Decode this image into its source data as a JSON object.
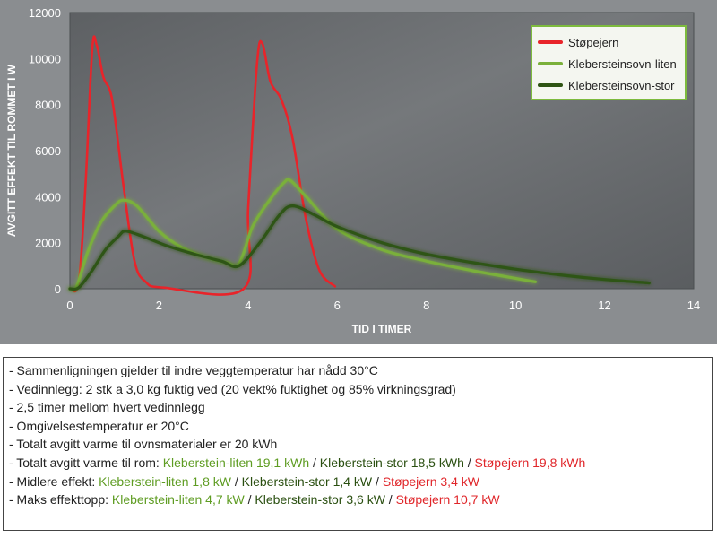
{
  "chart_data": {
    "type": "line",
    "xlabel": "TID I TIMER",
    "ylabel": "AVGITT EFFEKT TIL ROMMET I W",
    "xlim": [
      0,
      14
    ],
    "ylim": [
      0,
      12000
    ],
    "x_ticks": [
      "0",
      "2",
      "4",
      "6",
      "8",
      "10",
      "12",
      "14"
    ],
    "y_ticks": [
      "0",
      "2000",
      "4000",
      "6000",
      "8000",
      "10000",
      "12000"
    ],
    "legend_position": "top-right",
    "grid": false,
    "series": [
      {
        "name": "Støpejern",
        "color": "#e8242a",
        "points": [
          [
            0,
            0
          ],
          [
            0.2,
            300
          ],
          [
            0.35,
            4500
          ],
          [
            0.5,
            10400
          ],
          [
            0.6,
            10600
          ],
          [
            0.75,
            9200
          ],
          [
            0.95,
            8200
          ],
          [
            1.2,
            4500
          ],
          [
            1.45,
            1200
          ],
          [
            1.7,
            300
          ],
          [
            2.1,
            50
          ],
          [
            3.9,
            0
          ],
          [
            4.0,
            3500
          ],
          [
            4.2,
            9800
          ],
          [
            4.32,
            10650
          ],
          [
            4.5,
            9000
          ],
          [
            4.75,
            8200
          ],
          [
            5.0,
            6500
          ],
          [
            5.3,
            3000
          ],
          [
            5.6,
            800
          ],
          [
            5.95,
            100
          ]
        ]
      },
      {
        "name": "Klebersteinsovn-liten",
        "color": "#7ab03a",
        "points": [
          [
            0,
            0
          ],
          [
            0.15,
            100
          ],
          [
            0.4,
            1600
          ],
          [
            0.7,
            2900
          ],
          [
            1.0,
            3600
          ],
          [
            1.2,
            3850
          ],
          [
            1.5,
            3600
          ],
          [
            2.0,
            2500
          ],
          [
            2.5,
            1800
          ],
          [
            3.0,
            1400
          ],
          [
            3.5,
            1150
          ],
          [
            3.8,
            1100
          ],
          [
            4.1,
            2700
          ],
          [
            4.5,
            3900
          ],
          [
            4.8,
            4600
          ],
          [
            4.95,
            4700
          ],
          [
            5.3,
            4000
          ],
          [
            6.0,
            2600
          ],
          [
            7.0,
            1700
          ],
          [
            8.0,
            1200
          ],
          [
            9.0,
            800
          ],
          [
            10.0,
            450
          ],
          [
            10.45,
            300
          ]
        ]
      },
      {
        "name": "Klebersteinsovn-stor",
        "color": "#2e5414",
        "points": [
          [
            0,
            0
          ],
          [
            0.2,
            50
          ],
          [
            0.5,
            800
          ],
          [
            0.8,
            1700
          ],
          [
            1.1,
            2300
          ],
          [
            1.25,
            2500
          ],
          [
            1.6,
            2300
          ],
          [
            2.2,
            1850
          ],
          [
            2.8,
            1500
          ],
          [
            3.4,
            1200
          ],
          [
            3.8,
            1000
          ],
          [
            4.3,
            2100
          ],
          [
            4.7,
            3200
          ],
          [
            5.0,
            3600
          ],
          [
            5.5,
            3200
          ],
          [
            6.0,
            2700
          ],
          [
            7.0,
            2000
          ],
          [
            8.0,
            1500
          ],
          [
            9.0,
            1150
          ],
          [
            10.0,
            850
          ],
          [
            11.0,
            600
          ],
          [
            12.0,
            400
          ],
          [
            13.0,
            250
          ]
        ]
      }
    ]
  },
  "notes": [
    {
      "segments": [
        {
          "text": "- Sammenligningen gjelder til indre veggtemperatur  har nådd 30°C",
          "tone": "plain"
        }
      ]
    },
    {
      "segments": [
        {
          "text": "- Vedinnlegg:  2 stk a 3,0 kg fuktig ved (20 vekt% fuktighet og 85% virkningsgrad)",
          "tone": "plain"
        }
      ]
    },
    {
      "segments": [
        {
          "text": "- 2,5 timer mellom hvert vedinnlegg",
          "tone": "plain"
        }
      ]
    },
    {
      "segments": [
        {
          "text": "- Omgivelsestemperatur  er 20°C",
          "tone": "plain"
        }
      ]
    },
    {
      "segments": [
        {
          "text": "- Totalt avgitt varme til ovnsmaterialer  er 20 kWh",
          "tone": "plain"
        }
      ]
    },
    {
      "segments": [
        {
          "text": "- Totalt avgitt varme til rom: ",
          "tone": "plain"
        },
        {
          "text": "Kleberstein-liten  19,1 kWh",
          "tone": "green"
        },
        {
          "text": " / ",
          "tone": "plain"
        },
        {
          "text": "Kleberstein-stor  18,5 kWh",
          "tone": "dark"
        },
        {
          "text": " / ",
          "tone": "plain"
        },
        {
          "text": "Støpejern  19,8 kWh",
          "tone": "red"
        }
      ]
    },
    {
      "segments": [
        {
          "text": "- Midlere effekt:  ",
          "tone": "plain"
        },
        {
          "text": "Kleberstein-liten  1,8 kW",
          "tone": "green"
        },
        {
          "text": " / ",
          "tone": "plain"
        },
        {
          "text": "Kleberstein-stor  1,4 kW",
          "tone": "dark"
        },
        {
          "text": " / ",
          "tone": "plain"
        },
        {
          "text": "Støpejern  3,4 kW",
          "tone": "red"
        }
      ]
    },
    {
      "segments": [
        {
          "text": "- Maks effekttopp: ",
          "tone": "plain"
        },
        {
          "text": "Kleberstein-liten  4,7 kW",
          "tone": "green"
        },
        {
          "text": " / ",
          "tone": "plain"
        },
        {
          "text": "Kleberstein-stor  3,6 kW",
          "tone": "dark"
        },
        {
          "text": " / ",
          "tone": "plain"
        },
        {
          "text": "Støpejern  10,7 kW",
          "tone": "red"
        }
      ]
    }
  ]
}
